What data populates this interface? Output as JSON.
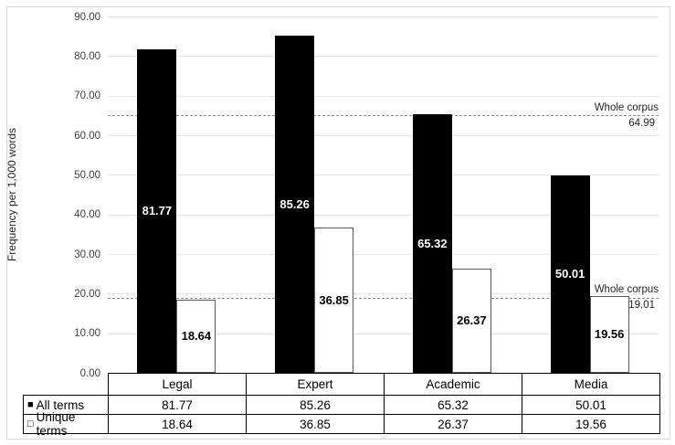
{
  "figure": {
    "background": "#ffffff",
    "border_color": "#d9d9d9"
  },
  "chart_data": {
    "type": "bar",
    "title": "",
    "ylabel": "Frequency per 1,000 words",
    "ylim": [
      0,
      90
    ],
    "yticks": [
      0,
      10,
      20,
      30,
      40,
      50,
      60,
      70,
      80,
      90
    ],
    "ytick_labels": [
      "0.00",
      "10.00",
      "20.00",
      "30.00",
      "40.00",
      "50.00",
      "60.00",
      "70.00",
      "80.00",
      "90.00"
    ],
    "grid": "horizontal",
    "categories": [
      "Legal",
      "Expert",
      "Academic",
      "Media"
    ],
    "series": [
      {
        "name": "All terms",
        "swatch_icon": "filled-square",
        "swatch_glyph": "■",
        "fill": "#000000",
        "label_color": "#ffffff",
        "values": [
          81.77,
          85.26,
          65.32,
          50.01
        ],
        "labels": [
          "81.77",
          "85.26",
          "65.32",
          "50.01"
        ]
      },
      {
        "name": "Unique terms",
        "swatch_icon": "open-square",
        "swatch_glyph": "□",
        "fill": "#ffffff",
        "border": "#595959",
        "label_color": "#000000",
        "values": [
          18.64,
          36.85,
          26.37,
          19.56
        ],
        "labels": [
          "18.64",
          "36.85",
          "26.37",
          "19.56"
        ]
      }
    ],
    "reference_lines": [
      {
        "label": "Whole corpus",
        "value": 64.99,
        "value_label": "64.99"
      },
      {
        "label": "Whole corpus",
        "value": 19.01,
        "value_label": "19.01"
      }
    ],
    "data_table": {
      "columns": [
        "Legal",
        "Expert",
        "Academic",
        "Media"
      ],
      "rows": [
        {
          "swatch": "■",
          "name": "All terms",
          "values": [
            "81.77",
            "85.26",
            "65.32",
            "50.01"
          ]
        },
        {
          "swatch": "□",
          "name": "Unique terms",
          "values": [
            "18.64",
            "36.85",
            "26.37",
            "19.56"
          ]
        }
      ]
    }
  },
  "colors": {
    "bar_fill": "#000000",
    "bar_outline": "#595959",
    "gridline": "#e3e3e3",
    "dashed_line": "#8c8c8c",
    "table_border": "#000000",
    "text": "#262626"
  }
}
